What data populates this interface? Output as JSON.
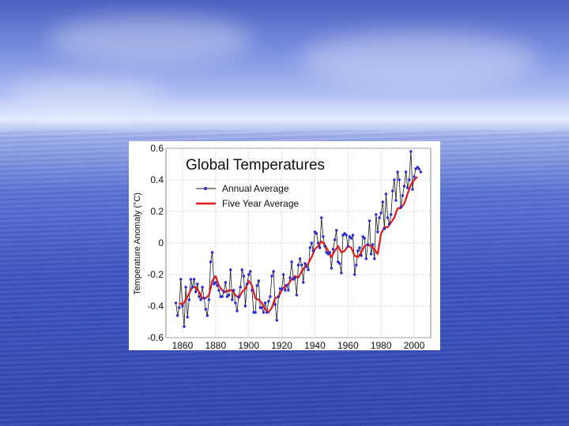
{
  "background": {
    "sky_color": "#5a6fd0",
    "sea_color": "#3a50bc"
  },
  "chart_data": {
    "type": "line",
    "title": "Global Temperatures",
    "xlabel": "",
    "ylabel": "Temperature Anomaly (°C)",
    "xlim": [
      1850,
      2010
    ],
    "ylim": [
      -0.6,
      0.6
    ],
    "x_ticks": [
      1860,
      1880,
      1900,
      1920,
      1940,
      1960,
      1980,
      2000
    ],
    "y_ticks": [
      "0.6",
      "0.4",
      "0.2",
      "0",
      "-0.2",
      "-0.4",
      "-0.6"
    ],
    "y_tick_values": [
      0.6,
      0.4,
      0.2,
      0,
      -0.2,
      -0.4,
      -0.6
    ],
    "grid": true,
    "legend_position": "top-left",
    "series": [
      {
        "name": "Annual Average",
        "color": "#1a1a1a",
        "marker_color": "#2a2ad8",
        "x": [
          1856,
          1857,
          1858,
          1859,
          1860,
          1861,
          1862,
          1863,
          1864,
          1865,
          1866,
          1867,
          1868,
          1869,
          1870,
          1871,
          1872,
          1873,
          1874,
          1875,
          1876,
          1877,
          1878,
          1879,
          1880,
          1881,
          1882,
          1883,
          1884,
          1885,
          1886,
          1887,
          1888,
          1889,
          1890,
          1891,
          1892,
          1893,
          1894,
          1895,
          1896,
          1897,
          1898,
          1899,
          1900,
          1901,
          1902,
          1903,
          1904,
          1905,
          1906,
          1907,
          1908,
          1909,
          1910,
          1911,
          1912,
          1913,
          1914,
          1915,
          1916,
          1917,
          1918,
          1919,
          1920,
          1921,
          1922,
          1923,
          1924,
          1925,
          1926,
          1927,
          1928,
          1929,
          1930,
          1931,
          1932,
          1933,
          1934,
          1935,
          1936,
          1937,
          1938,
          1939,
          1940,
          1941,
          1942,
          1943,
          1944,
          1945,
          1946,
          1947,
          1948,
          1949,
          1950,
          1951,
          1952,
          1953,
          1954,
          1955,
          1956,
          1957,
          1958,
          1959,
          1960,
          1961,
          1962,
          1963,
          1964,
          1965,
          1966,
          1967,
          1968,
          1969,
          1970,
          1971,
          1972,
          1973,
          1974,
          1975,
          1976,
          1977,
          1978,
          1979,
          1980,
          1981,
          1982,
          1983,
          1984,
          1985,
          1986,
          1987,
          1988,
          1989,
          1990,
          1991,
          1992,
          1993,
          1994,
          1995,
          1996,
          1997,
          1998,
          1999,
          2000,
          2001,
          2002,
          2003,
          2004
        ],
        "values": [
          -0.38,
          -0.46,
          -0.41,
          -0.23,
          -0.4,
          -0.53,
          -0.28,
          -0.47,
          -0.36,
          -0.23,
          -0.28,
          -0.23,
          -0.31,
          -0.26,
          -0.34,
          -0.36,
          -0.28,
          -0.35,
          -0.42,
          -0.46,
          -0.36,
          -0.12,
          -0.06,
          -0.26,
          -0.25,
          -0.27,
          -0.3,
          -0.34,
          -0.34,
          -0.31,
          -0.25,
          -0.34,
          -0.33,
          -0.17,
          -0.36,
          -0.3,
          -0.38,
          -0.43,
          -0.34,
          -0.28,
          -0.17,
          -0.21,
          -0.4,
          -0.26,
          -0.2,
          -0.18,
          -0.3,
          -0.44,
          -0.44,
          -0.27,
          -0.24,
          -0.41,
          -0.41,
          -0.44,
          -0.38,
          -0.44,
          -0.37,
          -0.34,
          -0.21,
          -0.18,
          -0.39,
          -0.49,
          -0.34,
          -0.29,
          -0.29,
          -0.2,
          -0.3,
          -0.27,
          -0.3,
          -0.22,
          -0.12,
          -0.23,
          -0.22,
          -0.33,
          -0.14,
          -0.1,
          -0.14,
          -0.25,
          -0.13,
          -0.15,
          -0.17,
          -0.03,
          0.0,
          -0.05,
          0.07,
          0.06,
          0.0,
          -0.03,
          0.16,
          0.04,
          -0.02,
          -0.06,
          -0.07,
          -0.06,
          -0.16,
          -0.04,
          0.02,
          0.08,
          -0.12,
          -0.13,
          -0.19,
          0.05,
          0.06,
          0.05,
          -0.02,
          0.04,
          0.03,
          0.05,
          -0.2,
          -0.14,
          -0.05,
          -0.03,
          -0.08,
          0.04,
          0.03,
          -0.1,
          -0.01,
          0.14,
          -0.07,
          -0.01,
          -0.1,
          0.18,
          0.07,
          0.16,
          0.19,
          0.26,
          0.09,
          0.31,
          0.16,
          0.12,
          0.18,
          0.33,
          0.4,
          0.27,
          0.45,
          0.4,
          0.23,
          0.3,
          0.36,
          0.45,
          0.35,
          0.4,
          0.58,
          0.34,
          0.42,
          0.47,
          0.48,
          0.47,
          0.45
        ]
      },
      {
        "name": "Five Year Average",
        "color": "#e01818",
        "x": [
          1858,
          1860,
          1862,
          1864,
          1866,
          1868,
          1870,
          1872,
          1874,
          1876,
          1878,
          1880,
          1882,
          1884,
          1886,
          1888,
          1890,
          1892,
          1894,
          1896,
          1898,
          1900,
          1902,
          1904,
          1906,
          1908,
          1910,
          1912,
          1914,
          1916,
          1918,
          1920,
          1922,
          1924,
          1926,
          1928,
          1930,
          1932,
          1934,
          1936,
          1938,
          1940,
          1942,
          1944,
          1946,
          1948,
          1950,
          1952,
          1954,
          1956,
          1958,
          1960,
          1962,
          1964,
          1966,
          1968,
          1970,
          1972,
          1974,
          1976,
          1978,
          1980,
          1982,
          1984,
          1986,
          1988,
          1990,
          1992,
          1994,
          1996,
          1998,
          2000,
          2002
        ],
        "values": [
          -0.38,
          -0.39,
          -0.36,
          -0.32,
          -0.28,
          -0.28,
          -0.31,
          -0.35,
          -0.35,
          -0.33,
          -0.24,
          -0.21,
          -0.27,
          -0.3,
          -0.31,
          -0.3,
          -0.3,
          -0.33,
          -0.35,
          -0.31,
          -0.29,
          -0.24,
          -0.27,
          -0.35,
          -0.36,
          -0.38,
          -0.42,
          -0.44,
          -0.41,
          -0.35,
          -0.34,
          -0.3,
          -0.27,
          -0.26,
          -0.23,
          -0.21,
          -0.22,
          -0.18,
          -0.15,
          -0.13,
          -0.09,
          -0.04,
          -0.02,
          0.01,
          -0.01,
          -0.05,
          -0.09,
          -0.05,
          -0.02,
          -0.06,
          -0.05,
          -0.02,
          -0.03,
          -0.08,
          -0.09,
          -0.06,
          -0.02,
          -0.01,
          -0.02,
          -0.04,
          -0.07,
          0.06,
          0.1,
          0.1,
          0.13,
          0.16,
          0.22,
          0.22,
          0.25,
          0.31,
          0.37,
          0.4,
          0.42
        ]
      }
    ]
  }
}
